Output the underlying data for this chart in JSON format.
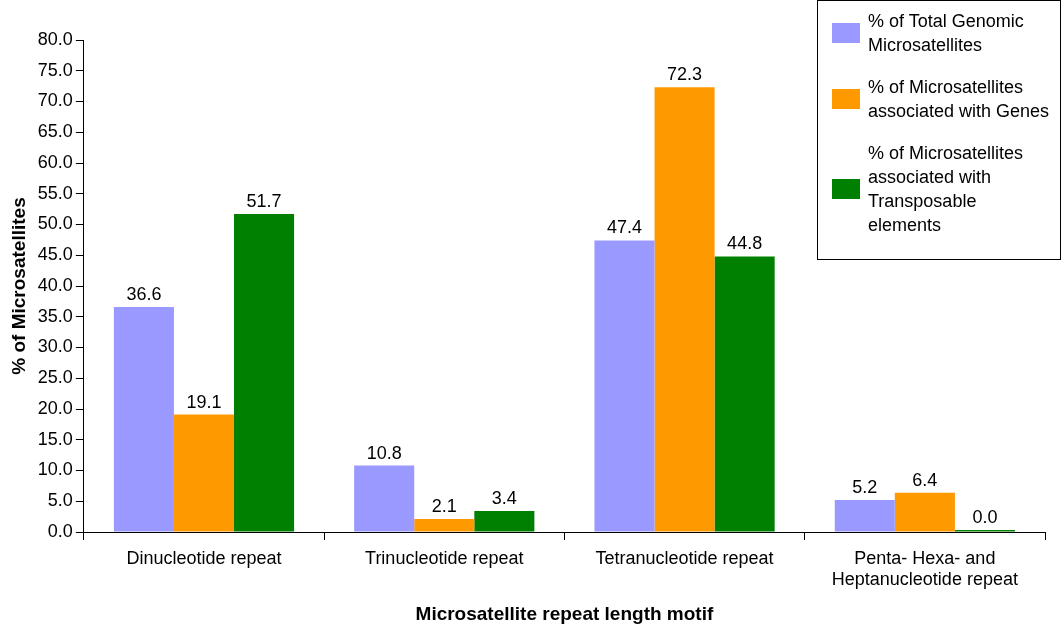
{
  "chart_data": {
    "type": "bar",
    "xlabel": "Microsatellite repeat length motif",
    "ylabel": "% of Microsatellites",
    "categories": [
      "Dinucleotide repeat",
      "Trinucleotide repeat",
      "Tetranucleotide repeat",
      "Penta- Hexa- and Heptanucleotide repeat"
    ],
    "series": [
      {
        "name": "% of Total Genomic Microsatellites",
        "color": "#9999ff",
        "values": [
          36.6,
          10.8,
          47.4,
          5.2
        ],
        "value_labels": [
          "36.6",
          "10.8",
          "47.4",
          "5.2"
        ]
      },
      {
        "name": "% of Microsatellites associated with Genes",
        "color": "#ff9900",
        "values": [
          19.1,
          2.1,
          72.3,
          6.4
        ],
        "value_labels": [
          "19.1",
          "2.1",
          "72.3",
          "6.4"
        ]
      },
      {
        "name": "% of Microsatellites associated with Transposable elements",
        "color": "#008000",
        "values": [
          51.7,
          3.4,
          44.8,
          0.0
        ],
        "value_labels": [
          "51.7",
          "3.4",
          "44.8",
          "0.0"
        ]
      }
    ],
    "ylim": [
      0,
      80
    ],
    "yticks": [
      {
        "value": 0,
        "label": "0.0"
      },
      {
        "value": 5,
        "label": "5.0"
      },
      {
        "value": 10,
        "label": "10.0"
      },
      {
        "value": 15,
        "label": "15.0"
      },
      {
        "value": 20,
        "label": "20.0"
      },
      {
        "value": 25,
        "label": "25.0"
      },
      {
        "value": 30,
        "label": "30.0"
      },
      {
        "value": 35,
        "label": "35.0"
      },
      {
        "value": 40,
        "label": "40.0"
      },
      {
        "value": 45,
        "label": "45.0"
      },
      {
        "value": 50,
        "label": "50.0"
      },
      {
        "value": 55,
        "label": "55.0"
      },
      {
        "value": 60,
        "label": "60.0"
      },
      {
        "value": 65,
        "label": "65.0"
      },
      {
        "value": 70,
        "label": "70.0"
      },
      {
        "value": 75,
        "label": "75.0"
      },
      {
        "value": 80,
        "label": "80.0"
      }
    ],
    "grid": false,
    "legend": "top right"
  }
}
